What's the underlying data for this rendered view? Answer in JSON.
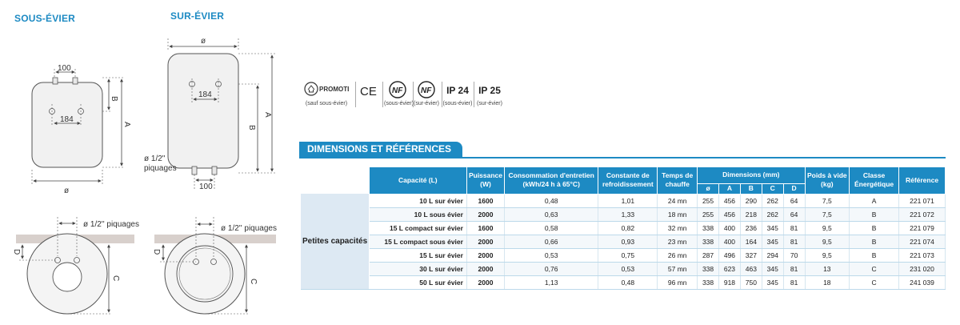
{
  "titles": {
    "sous_evier": "SOUS-ÉVIER",
    "sur_evier": "SUR-ÉVIER"
  },
  "drawing_labels": {
    "diameter": "ø",
    "d100": "100",
    "d184": "184",
    "A": "A",
    "B": "B",
    "C": "C",
    "D": "D",
    "piquages": "ø 1/2'' piquages",
    "piquages_top": "ø 1/2\"",
    "piquages_bottom": "piquages"
  },
  "certifications": [
    {
      "name": "promotelec-icon",
      "logo": "PROMOTELEC",
      "caption": "(sauf sous-évier)"
    },
    {
      "name": "ce-icon",
      "logo": "CE",
      "caption": ""
    },
    {
      "name": "nf-icon",
      "logo": "NF",
      "caption": "(sous-évier)"
    },
    {
      "name": "nf-icon",
      "logo": "NF",
      "caption": "(sur-évier)"
    },
    {
      "name": "ip24",
      "logo": "IP 24",
      "caption": "(sous-évier)"
    },
    {
      "name": "ip25",
      "logo": "IP 25",
      "caption": "(sur-évier)"
    }
  ],
  "section_title": "DIMENSIONS ET RÉFÉRENCES",
  "table": {
    "headers": {
      "capacite": "Capacité (L)",
      "puissance": "Puissance (W)",
      "consommation": "Consommation d'entretien (kWh/24 h à 65°C)",
      "constante": "Constante de refroidissement",
      "temps": "Temps de chauffe",
      "dimensions": "Dimensions (mm)",
      "poids": "Poids à vide (kg)",
      "classe": "Classe Énergétique",
      "reference": "Référence"
    },
    "dim_subheaders": [
      "ø",
      "A",
      "B",
      "C",
      "D"
    ],
    "group_label": "Petites capacités",
    "rows": [
      {
        "capacite": "10 L sur évier",
        "puissance": "1600",
        "conso": "0,48",
        "constante": "1,01",
        "temps": "24 mn",
        "dims": [
          "255",
          "456",
          "290",
          "262",
          "64"
        ],
        "poids": "7,5",
        "classe": "A",
        "ref": "221 071"
      },
      {
        "capacite": "10 L sous évier",
        "puissance": "2000",
        "conso": "0,63",
        "constante": "1,33",
        "temps": "18 mn",
        "dims": [
          "255",
          "456",
          "218",
          "262",
          "64"
        ],
        "poids": "7,5",
        "classe": "B",
        "ref": "221 072"
      },
      {
        "capacite": "15 L compact sur évier",
        "puissance": "1600",
        "conso": "0,58",
        "constante": "0,82",
        "temps": "32 mn",
        "dims": [
          "338",
          "400",
          "236",
          "345",
          "81"
        ],
        "poids": "9,5",
        "classe": "B",
        "ref": "221 079"
      },
      {
        "capacite": "15 L compact sous évier",
        "puissance": "2000",
        "conso": "0,66",
        "constante": "0,93",
        "temps": "23 mn",
        "dims": [
          "338",
          "400",
          "164",
          "345",
          "81"
        ],
        "poids": "9,5",
        "classe": "B",
        "ref": "221 074"
      },
      {
        "capacite": "15 L sur évier",
        "puissance": "2000",
        "conso": "0,53",
        "constante": "0,75",
        "temps": "26 mn",
        "dims": [
          "287",
          "496",
          "327",
          "294",
          "70"
        ],
        "poids": "9,5",
        "classe": "B",
        "ref": "221 073"
      },
      {
        "capacite": "30 L sur évier",
        "puissance": "2000",
        "conso": "0,76",
        "constante": "0,53",
        "temps": "57 mn",
        "dims": [
          "338",
          "623",
          "463",
          "345",
          "81"
        ],
        "poids": "13",
        "classe": "C",
        "ref": "231 020"
      },
      {
        "capacite": "50 L sur évier",
        "puissance": "2000",
        "conso": "1,13",
        "constante": "0,48",
        "temps": "96 mn",
        "dims": [
          "338",
          "918",
          "750",
          "345",
          "81"
        ],
        "poids": "18",
        "classe": "C",
        "ref": "241 039"
      }
    ]
  },
  "colors": {
    "accent": "#1d8ac3",
    "row_tint": "#dde9f3",
    "counter": "#d8d0cc",
    "tank": "#f1f1f1"
  }
}
